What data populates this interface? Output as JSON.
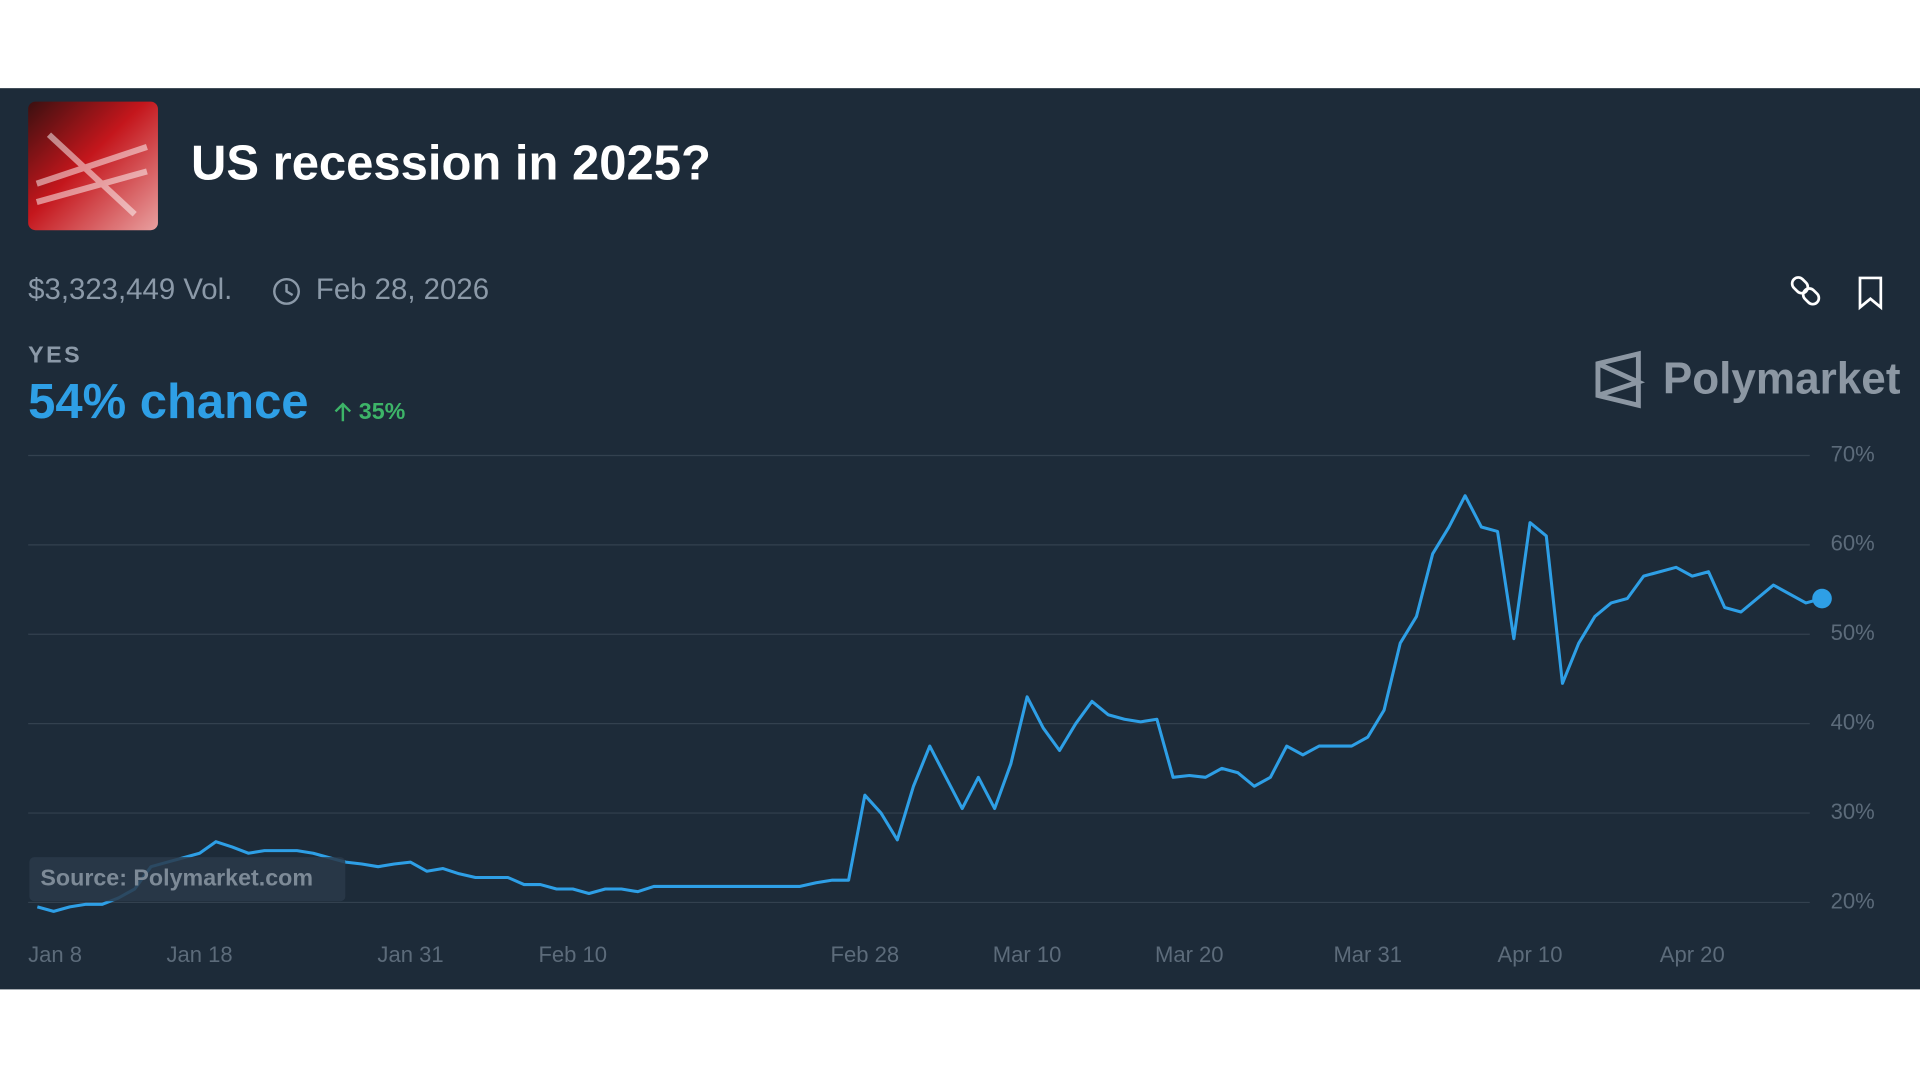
{
  "header": {
    "title": "US recession in 2025?",
    "volume": "$3,323,449 Vol.",
    "end_date": "Feb 28, 2026",
    "chance": "54% chance",
    "change": "35%",
    "brand": "Polymarket",
    "source": "Source: Polymarket.com"
  },
  "chart_data": {
    "type": "line",
    "x": [
      "Jan 8",
      "Jan 9",
      "Jan 10",
      "Jan 11",
      "Jan 12",
      "Jan 13",
      "Jan 14",
      "Jan 15",
      "Jan 16",
      "Jan 17",
      "Jan 18",
      "Jan 19",
      "Jan 20",
      "Jan 21",
      "Jan 22",
      "Jan 23",
      "Jan 24",
      "Jan 25",
      "Jan 26",
      "Jan 27",
      "Jan 28",
      "Jan 29",
      "Jan 30",
      "Jan 31",
      "Feb 1",
      "Feb 2",
      "Feb 3",
      "Feb 4",
      "Feb 5",
      "Feb 6",
      "Feb 7",
      "Feb 8",
      "Feb 9",
      "Feb 10",
      "Feb 11",
      "Feb 12",
      "Feb 13",
      "Feb 14",
      "Feb 15",
      "Feb 16",
      "Feb 17",
      "Feb 18",
      "Feb 19",
      "Feb 20",
      "Feb 21",
      "Feb 22",
      "Feb 23",
      "Feb 24",
      "Feb 25",
      "Feb 26",
      "Feb 27",
      "Feb 28",
      "Mar 1",
      "Mar 2",
      "Mar 3",
      "Mar 4",
      "Mar 5",
      "Mar 6",
      "Mar 7",
      "Mar 8",
      "Mar 9",
      "Mar 10",
      "Mar 11",
      "Mar 12",
      "Mar 13",
      "Mar 14",
      "Mar 15",
      "Mar 16",
      "Mar 17",
      "Mar 18",
      "Mar 19",
      "Mar 20",
      "Mar 21",
      "Mar 22",
      "Mar 23",
      "Mar 24",
      "Mar 25",
      "Mar 26",
      "Mar 27",
      "Mar 28",
      "Mar 29",
      "Mar 30",
      "Mar 31",
      "Apr 1",
      "Apr 2",
      "Apr 3",
      "Apr 4",
      "Apr 5",
      "Apr 6",
      "Apr 7",
      "Apr 8",
      "Apr 9",
      "Apr 10",
      "Apr 11",
      "Apr 12",
      "Apr 13",
      "Apr 14",
      "Apr 15",
      "Apr 16",
      "Apr 17",
      "Apr 18",
      "Apr 19",
      "Apr 20",
      "Apr 21",
      "Apr 22",
      "Apr 23",
      "Apr 24",
      "Apr 25",
      "Apr 26",
      "Apr 27",
      "Apr 28"
    ],
    "series": [
      {
        "name": "YES",
        "color": "#2e9fe6",
        "values": [
          19.5,
          19,
          19.5,
          19.8,
          19.8,
          20.5,
          21.5,
          24,
          24.5,
          25,
          25.5,
          26.8,
          26.2,
          25.5,
          25.8,
          25.8,
          25.8,
          25.5,
          25,
          24.5,
          24.3,
          24,
          24.3,
          24.5,
          23.5,
          23.8,
          23.2,
          22.8,
          22.8,
          22.8,
          22,
          22,
          21.5,
          21.5,
          21,
          21.5,
          21.5,
          21.2,
          21.8,
          21.8,
          21.8,
          21.8,
          21.8,
          21.8,
          21.8,
          21.8,
          21.8,
          21.8,
          22.2,
          22.5,
          22.5,
          32,
          30,
          27,
          33,
          37.5,
          34,
          30.5,
          34,
          30.5,
          35.5,
          43,
          39.5,
          37,
          40,
          42.5,
          41,
          40.5,
          40.2,
          40.5,
          34,
          34.2,
          34,
          35,
          34.5,
          33,
          34,
          37.5,
          36.5,
          37.5,
          37.5,
          37.5,
          38.5,
          41.5,
          49,
          52,
          59,
          62,
          65.5,
          62,
          61.5,
          49.5,
          62.5,
          61,
          44.5,
          49,
          52,
          53.5,
          54,
          56.5,
          57,
          57.5,
          56.5,
          57,
          53,
          52.5,
          54,
          55.5,
          54.5,
          53.5,
          54
        ]
      }
    ],
    "xticks": [
      "Jan 8",
      "Jan 18",
      "Jan 31",
      "Feb 10",
      "Feb 28",
      "Mar 10",
      "Mar 20",
      "Mar 31",
      "Apr 10",
      "Apr 20"
    ],
    "ylim": [
      17,
      72
    ],
    "yticks": [
      {
        "value": 20,
        "label": "20%"
      },
      {
        "value": 30,
        "label": "30%"
      },
      {
        "value": 40,
        "label": "40%"
      },
      {
        "value": 50,
        "label": "50%"
      },
      {
        "value": 60,
        "label": "60%"
      },
      {
        "value": 70,
        "label": "70%"
      }
    ],
    "grid": true
  }
}
